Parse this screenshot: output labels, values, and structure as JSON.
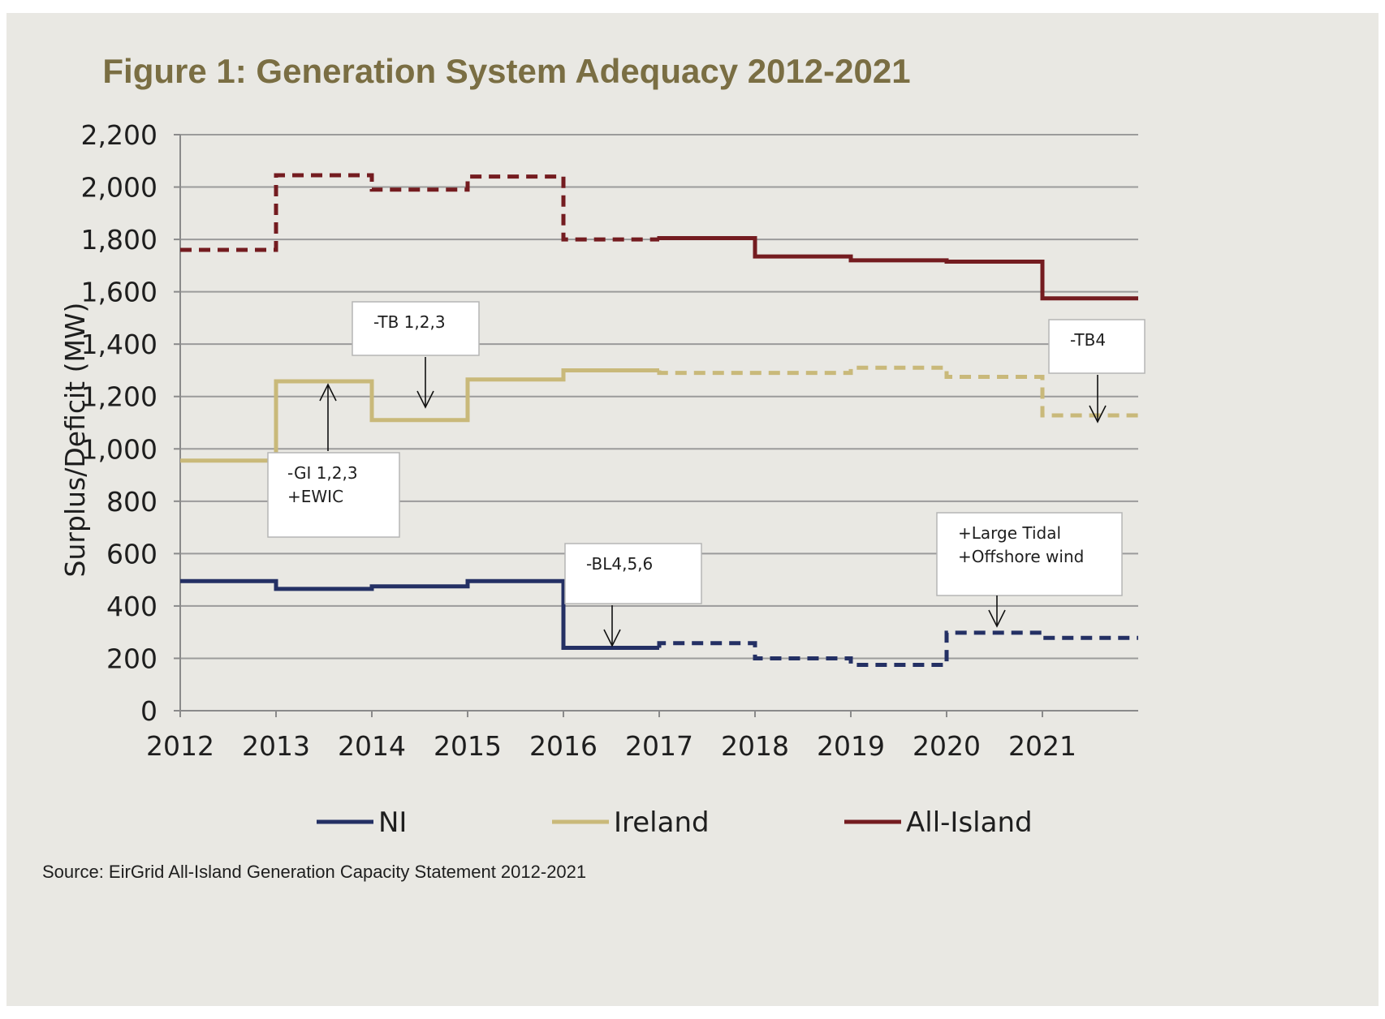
{
  "chart_data": {
    "type": "line",
    "title": "Figure 1: Generation System Adequacy 2012-2021",
    "ylabel": "Surplus/Deficit (MW)",
    "xlabel": "",
    "ylim": [
      0,
      2200
    ],
    "yticks": [
      0,
      200,
      400,
      600,
      800,
      1000,
      1200,
      1400,
      1600,
      1800,
      2000,
      2200
    ],
    "ytick_labels": [
      "0",
      "200",
      "400",
      "600",
      "800",
      "1,000",
      "1,200",
      "1,400",
      "1,600",
      "1,800",
      "2,000",
      "2,200"
    ],
    "categories": [
      "2012",
      "2013",
      "2014",
      "2015",
      "2016",
      "2017",
      "2018",
      "2019",
      "2020",
      "2021"
    ],
    "step": true,
    "grid": true,
    "legend_position": "bottom",
    "series": [
      {
        "name": "NI",
        "color": "#243064",
        "values": [
          495,
          465,
          475,
          495,
          240,
          258,
          200,
          175,
          298,
          278
        ],
        "dashed_from_index": 5
      },
      {
        "name": "Ireland",
        "color": "#c9b97a",
        "values": [
          955,
          1258,
          1110,
          1265,
          1300,
          1290,
          1290,
          1310,
          1275,
          1128
        ],
        "dashed_from_index": 5
      },
      {
        "name": "All-Island",
        "color": "#741c20",
        "values": [
          1760,
          2045,
          1990,
          2040,
          1800,
          1805,
          1735,
          1720,
          1715,
          1575
        ],
        "dashed_before_index": 5
      }
    ],
    "annotations": [
      {
        "lines": [
          "-TB 1,2,3"
        ]
      },
      {
        "lines": [
          "-GI 1,2,3",
          "+EWIC"
        ]
      },
      {
        "lines": [
          "-TB4"
        ]
      },
      {
        "lines": [
          "-BL4,5,6"
        ]
      },
      {
        "lines": [
          "+Large Tidal",
          "+Offshore wind"
        ]
      }
    ]
  },
  "source": "Source: EirGrid All-Island Generation Capacity Statement 2012-2021"
}
